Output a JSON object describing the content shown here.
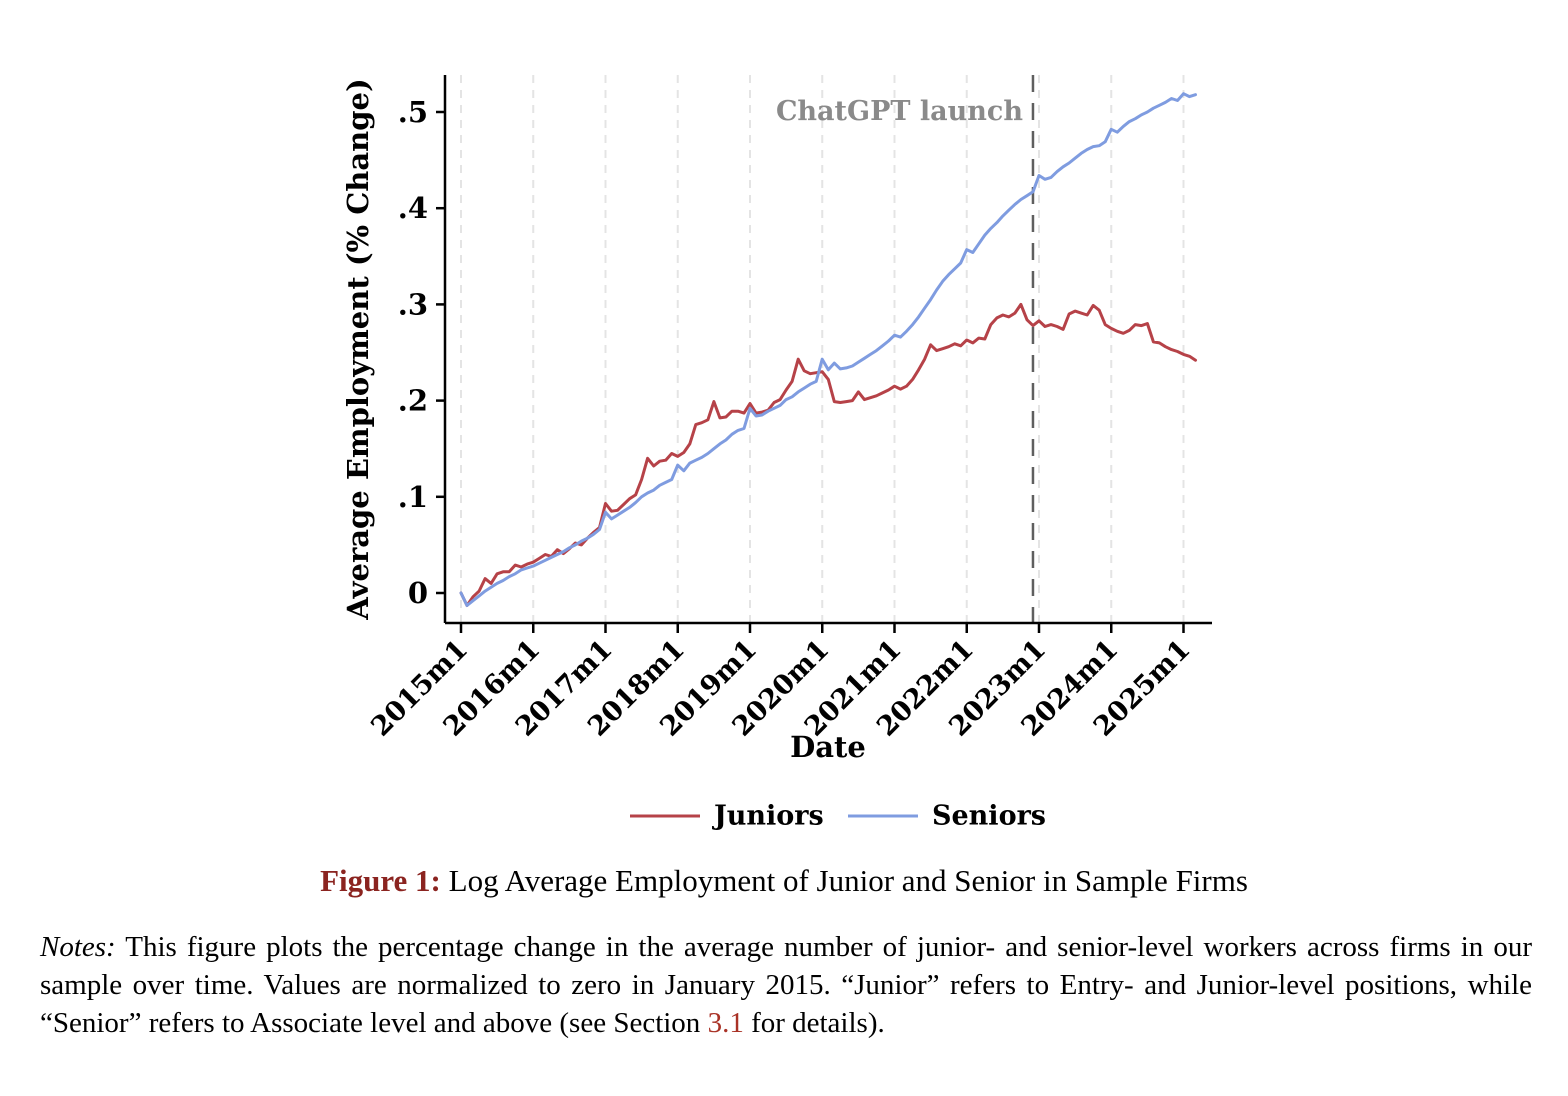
{
  "figure": {
    "caption_label": "Figure 1:",
    "caption_text": " Log Average Employment of Junior and Senior in Sample Firms",
    "notes_label": "Notes:",
    "notes_text_1": " This figure plots the percentage change in the average number of junior- and senior-level workers across firms in our sample over time. Values are normalized to zero in January 2015. “Junior” refers to Entry- and Junior-level positions, while “Senior” refers to Associate level and above (see Section ",
    "notes_link": "3.1",
    "notes_text_2": " for details)."
  },
  "colors": {
    "juniors_line": "#b64248",
    "seniors_line": "#7f9ce0",
    "caption_accent": "#8b2420",
    "section_link": "#a93226",
    "annotation_text": "#8a8a8a",
    "annotation_line": "#5f5f5f",
    "gridline": "#e4e4e4",
    "axis": "#000000"
  },
  "chart_data": {
    "type": "line",
    "title": "",
    "xlabel": "Date",
    "ylabel": "Average Employment (% Change)",
    "x_start": "2015m1",
    "x_frequency": "monthly",
    "xtick_labels": [
      "2015m1",
      "2016m1",
      "2017m1",
      "2018m1",
      "2019m1",
      "2020m1",
      "2021m1",
      "2022m1",
      "2023m1",
      "2024m1",
      "2025m1"
    ],
    "xtick_months": [
      0,
      12,
      24,
      36,
      48,
      60,
      72,
      84,
      96,
      108,
      120
    ],
    "ylim": [
      -0.03,
      0.53
    ],
    "yticks": [
      0,
      0.1,
      0.2,
      0.3,
      0.4,
      0.5
    ],
    "ytick_labels": [
      "0",
      ".1",
      ".2",
      ".3",
      ".4",
      ".5"
    ],
    "grid": "vertical-dashed",
    "legend_position": "bottom",
    "annotation": {
      "label": "ChatGPT launch",
      "month": 95
    },
    "series": [
      {
        "name": "Juniors",
        "color": "#b64248",
        "values": [
          0.0,
          -0.013,
          -0.004,
          0.002,
          0.015,
          0.01,
          0.02,
          0.022,
          0.022,
          0.029,
          0.027,
          0.03,
          0.032,
          0.036,
          0.04,
          0.038,
          0.045,
          0.041,
          0.046,
          0.052,
          0.05,
          0.057,
          0.063,
          0.068,
          0.093,
          0.085,
          0.086,
          0.092,
          0.098,
          0.102,
          0.118,
          0.14,
          0.132,
          0.137,
          0.138,
          0.145,
          0.142,
          0.146,
          0.155,
          0.175,
          0.177,
          0.18,
          0.199,
          0.182,
          0.183,
          0.189,
          0.189,
          0.187,
          0.197,
          0.187,
          0.188,
          0.19,
          0.198,
          0.201,
          0.211,
          0.22,
          0.243,
          0.231,
          0.228,
          0.229,
          0.23,
          0.222,
          0.199,
          0.198,
          0.199,
          0.2,
          0.209,
          0.201,
          0.203,
          0.205,
          0.208,
          0.211,
          0.215,
          0.212,
          0.215,
          0.222,
          0.232,
          0.243,
          0.258,
          0.252,
          0.254,
          0.256,
          0.259,
          0.257,
          0.263,
          0.26,
          0.265,
          0.264,
          0.279,
          0.286,
          0.289,
          0.287,
          0.291,
          0.3,
          0.284,
          0.278,
          0.283,
          0.277,
          0.279,
          0.277,
          0.274,
          0.29,
          0.293,
          0.291,
          0.289,
          0.299,
          0.294,
          0.279,
          0.275,
          0.272,
          0.27,
          0.273,
          0.279,
          0.278,
          0.28,
          0.261,
          0.26,
          0.256,
          0.253,
          0.251,
          0.248,
          0.246,
          0.242
        ]
      },
      {
        "name": "Seniors",
        "color": "#7f9ce0",
        "values": [
          0.0,
          -0.013,
          -0.008,
          -0.003,
          0.002,
          0.006,
          0.01,
          0.013,
          0.017,
          0.02,
          0.024,
          0.026,
          0.028,
          0.031,
          0.034,
          0.037,
          0.04,
          0.043,
          0.047,
          0.05,
          0.054,
          0.057,
          0.061,
          0.066,
          0.084,
          0.077,
          0.081,
          0.085,
          0.089,
          0.094,
          0.1,
          0.104,
          0.107,
          0.112,
          0.115,
          0.118,
          0.133,
          0.127,
          0.135,
          0.138,
          0.141,
          0.145,
          0.15,
          0.155,
          0.159,
          0.165,
          0.169,
          0.171,
          0.192,
          0.184,
          0.185,
          0.189,
          0.192,
          0.195,
          0.201,
          0.204,
          0.209,
          0.213,
          0.217,
          0.22,
          0.243,
          0.232,
          0.239,
          0.233,
          0.234,
          0.236,
          0.24,
          0.244,
          0.248,
          0.252,
          0.257,
          0.262,
          0.268,
          0.266,
          0.272,
          0.279,
          0.287,
          0.296,
          0.305,
          0.315,
          0.324,
          0.331,
          0.337,
          0.343,
          0.357,
          0.354,
          0.363,
          0.372,
          0.379,
          0.385,
          0.392,
          0.398,
          0.404,
          0.409,
          0.413,
          0.417,
          0.434,
          0.43,
          0.432,
          0.438,
          0.443,
          0.447,
          0.452,
          0.457,
          0.461,
          0.464,
          0.465,
          0.469,
          0.482,
          0.479,
          0.485,
          0.49,
          0.493,
          0.497,
          0.5,
          0.504,
          0.507,
          0.51,
          0.514,
          0.512,
          0.519,
          0.516,
          0.518
        ]
      }
    ]
  }
}
